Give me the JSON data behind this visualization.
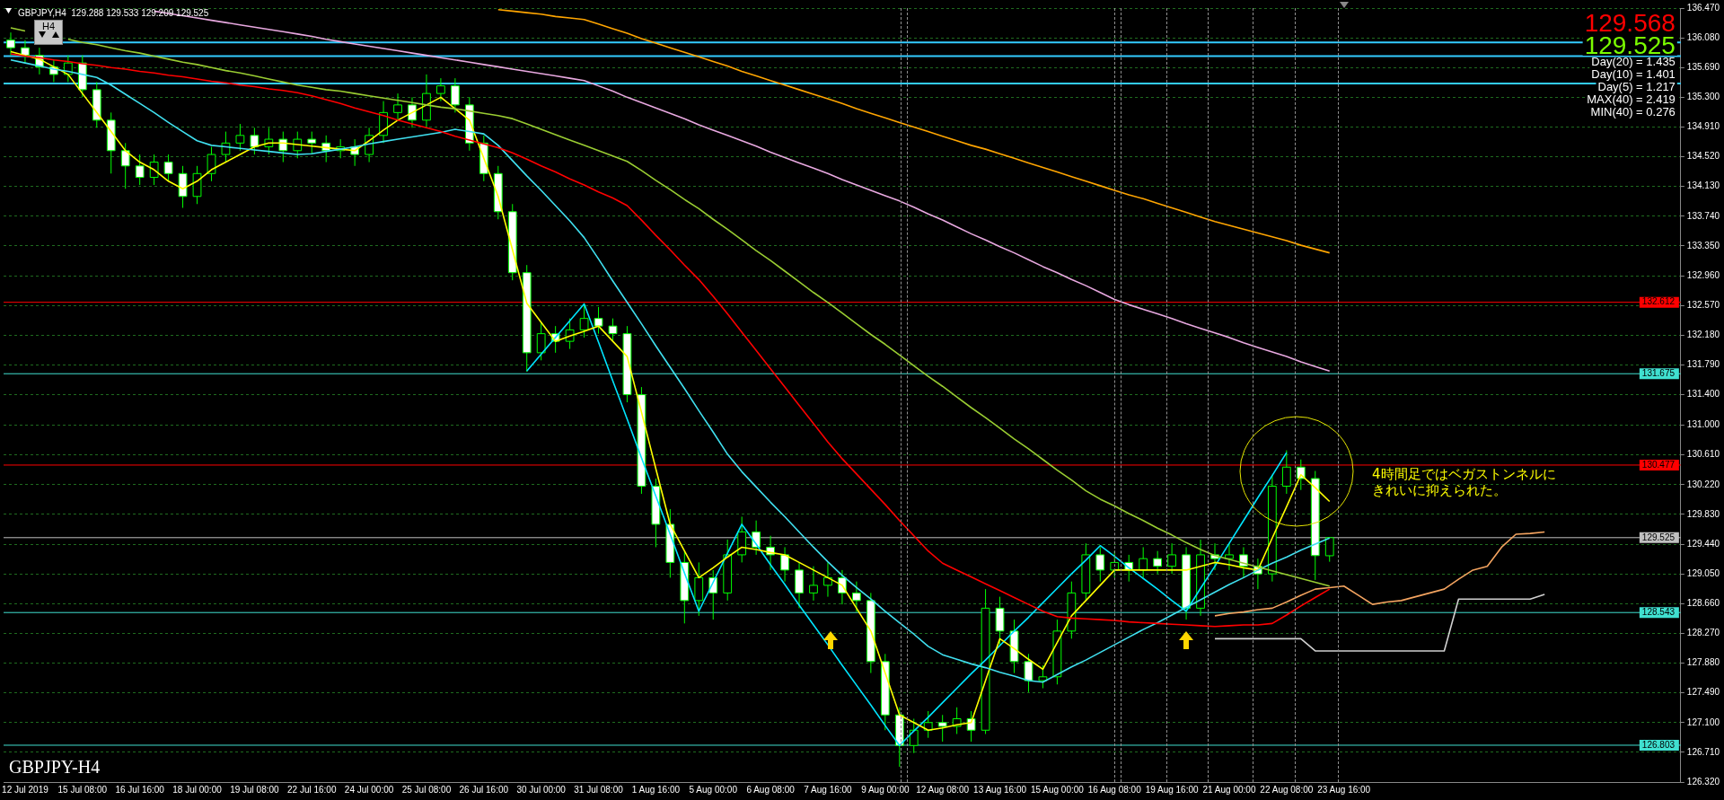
{
  "chart_data": {
    "type": "candlestick",
    "title": "GBPJPY-H4",
    "subtitle": "GBPJPY,H4  129.288 129.533 129.209 129.525",
    "annotations": [
      "H4",
      "129.568",
      "129.525",
      "Day(20) = 1.435",
      "Day(10) = 1.401",
      "Day(5) = 1.217",
      "MAX(40) = 2.419",
      "MIN(40) = 0.276",
      "4時間足ではベガストンネルにきれいに抑えられた。"
    ],
    "colors": [
      "#ffffff",
      "#ffffff",
      "#ffffff",
      "#ffffff",
      "#000000",
      "#ffffff",
      "#ffffff",
      "#ffffff",
      "#ffffff",
      "#ffffff",
      "#000000",
      "#ffffff",
      "#ffffff",
      "#000000",
      "#000000",
      "#000000",
      "#000000",
      "#ffffff",
      "#000000",
      "#ffffff",
      "#000000",
      "#ffffff",
      "#ffffff",
      "#000000",
      "#ffffff",
      "#000000",
      "#000000",
      "#000000",
      "#ffffff",
      "#000000",
      "#000000",
      "#ffffff",
      "#ffffff",
      "#ffffff",
      "#ffffff",
      "#ffffff",
      "#ffffff",
      "#000000",
      "#ffffff",
      "#000000",
      "#000000",
      "#ffffff",
      "#ffffff",
      "#ffffff",
      "#ffffff",
      "#ffffff",
      "#ffffff",
      "#ffffff",
      "#000000",
      "#ffffff",
      "#000000",
      "#000000",
      "#ffffff",
      "#ffffff",
      "#ffffff",
      "#ffffff",
      "#000000",
      "#000000",
      "#ffffff",
      "#ffffff",
      "#ffffff",
      "#ffffff",
      "#ffffff",
      "#000000",
      "#000000",
      "#ffffff",
      "#000000",
      "#ffffff",
      "#000000",
      "#ffffff",
      "#ffffff",
      "#ffffff",
      "#000000",
      "#000000",
      "#000000",
      "#000000",
      "#ffffff",
      "#000000",
      "#ffffff",
      "#000000",
      "#ffffff",
      "#000000",
      "#ffffff",
      "#000000",
      "#ffffff",
      "#000000",
      "#ffffff",
      "#ffffff",
      "#000000",
      "#000000",
      "#ffffff",
      "#ffffff",
      "#000000",
      null,
      null,
      null,
      null,
      null,
      null,
      null,
      null,
      null,
      null,
      null,
      null,
      null,
      null,
      null,
      null,
      null,
      null,
      null,
      null,
      null,
      null,
      null,
      null
    ],
    "categories": [
      null,
      "12 Jul 2019",
      null,
      null,
      null,
      "15 Jul 08:00",
      null,
      null,
      null,
      "16 Jul 16:00",
      null,
      null,
      null,
      "18 Jul 00:00",
      null,
      null,
      null,
      "19 Jul 08:00",
      null,
      null,
      null,
      "22 Jul 16:00",
      null,
      null,
      null,
      "24 Jul 00:00",
      null,
      null,
      null,
      "25 Jul 08:00",
      null,
      null,
      null,
      "26 Jul 16:00",
      null,
      null,
      null,
      "30 Jul 00:00",
      null,
      null,
      null,
      "31 Jul 08:00",
      null,
      null,
      null,
      "1 Aug 16:00",
      null,
      null,
      null,
      "5 Aug 00:00",
      null,
      null,
      null,
      "6 Aug 08:00",
      null,
      null,
      null,
      "7 Aug 16:00",
      null,
      null,
      null,
      "9 Aug 00:00",
      null,
      null,
      null,
      "12 Aug 08:00",
      null,
      null,
      null,
      "13 Aug 16:00",
      null,
      null,
      null,
      "15 Aug 00:00",
      null,
      null,
      null,
      "16 Aug 08:00",
      null,
      null,
      null,
      "19 Aug 16:00",
      null,
      null,
      null,
      "21 Aug 00:00",
      null,
      null,
      null,
      "22 Aug 08:00",
      null,
      null,
      null,
      "23 Aug 16:00",
      null,
      null,
      null,
      null,
      null,
      null,
      null,
      null,
      null,
      null,
      null,
      null,
      null,
      null,
      null,
      null,
      null,
      null,
      null,
      null,
      null,
      null,
      null
    ],
    "ohlc": [
      [
        136.05,
        136.15,
        135.85,
        135.95
      ],
      [
        135.95,
        136.05,
        135.75,
        135.85
      ],
      [
        135.85,
        135.95,
        135.6,
        135.7
      ],
      [
        135.7,
        135.8,
        135.5,
        135.6
      ],
      [
        135.6,
        135.85,
        135.5,
        135.75
      ],
      [
        135.75,
        135.85,
        135.3,
        135.4
      ],
      [
        135.4,
        135.5,
        134.9,
        135.0
      ],
      [
        135.0,
        135.1,
        134.3,
        134.6
      ],
      [
        134.6,
        134.7,
        134.1,
        134.4
      ],
      [
        134.4,
        134.55,
        134.15,
        134.25
      ],
      [
        134.25,
        134.55,
        134.15,
        134.45
      ],
      [
        134.45,
        134.55,
        134.2,
        134.3
      ],
      [
        134.3,
        134.4,
        133.85,
        134.0
      ],
      [
        134.0,
        134.4,
        133.9,
        134.3
      ],
      [
        134.3,
        134.65,
        134.2,
        134.55
      ],
      [
        134.55,
        134.85,
        134.45,
        134.7
      ],
      [
        134.7,
        134.95,
        134.6,
        134.8
      ],
      [
        134.8,
        134.9,
        134.55,
        134.65
      ],
      [
        134.65,
        134.9,
        134.55,
        134.75
      ],
      [
        134.75,
        134.85,
        134.45,
        134.6
      ],
      [
        134.6,
        134.85,
        134.5,
        134.75
      ],
      [
        134.75,
        134.85,
        134.55,
        134.7
      ],
      [
        134.7,
        134.8,
        134.45,
        134.6
      ],
      [
        134.6,
        134.75,
        134.5,
        134.65
      ],
      [
        134.65,
        134.75,
        134.4,
        134.55
      ],
      [
        134.55,
        134.9,
        134.45,
        134.8
      ],
      [
        134.8,
        135.25,
        134.7,
        135.1
      ],
      [
        135.1,
        135.35,
        135.0,
        135.2
      ],
      [
        135.2,
        135.3,
        134.9,
        135.0
      ],
      [
        135.0,
        135.6,
        134.9,
        135.35
      ],
      [
        135.35,
        135.55,
        135.25,
        135.45
      ],
      [
        135.45,
        135.55,
        135.1,
        135.2
      ],
      [
        135.2,
        135.3,
        134.6,
        134.7
      ],
      [
        134.7,
        134.8,
        134.2,
        134.3
      ],
      [
        134.3,
        134.4,
        133.7,
        133.8
      ],
      [
        133.8,
        133.9,
        132.9,
        133.0
      ],
      [
        133.0,
        133.1,
        131.7,
        131.95
      ],
      [
        131.95,
        132.35,
        131.85,
        132.2
      ],
      [
        132.2,
        132.3,
        131.95,
        132.1
      ],
      [
        132.1,
        132.4,
        132.0,
        132.25
      ],
      [
        132.25,
        132.6,
        132.15,
        132.4
      ],
      [
        132.4,
        132.55,
        132.2,
        132.3
      ],
      [
        132.3,
        132.4,
        132.1,
        132.2
      ],
      [
        132.2,
        132.3,
        131.3,
        131.4
      ],
      [
        131.4,
        131.5,
        130.1,
        130.2
      ],
      [
        130.2,
        130.3,
        129.4,
        129.7
      ],
      [
        129.7,
        129.9,
        129.0,
        129.2
      ],
      [
        129.2,
        129.35,
        128.4,
        128.7
      ],
      [
        128.7,
        129.2,
        128.5,
        129.0
      ],
      [
        129.0,
        129.1,
        128.45,
        128.8
      ],
      [
        128.8,
        129.5,
        128.7,
        129.3
      ],
      [
        129.3,
        129.8,
        129.2,
        129.6
      ],
      [
        129.6,
        129.75,
        129.3,
        129.4
      ],
      [
        129.4,
        129.55,
        129.1,
        129.3
      ],
      [
        129.3,
        129.4,
        128.95,
        129.1
      ],
      [
        129.1,
        129.2,
        128.6,
        128.8
      ],
      [
        128.8,
        129.15,
        128.7,
        128.9
      ],
      [
        128.9,
        129.2,
        128.75,
        129.0
      ],
      [
        129.0,
        129.1,
        128.65,
        128.8
      ],
      [
        128.8,
        128.95,
        128.55,
        128.7
      ],
      [
        128.7,
        128.8,
        127.75,
        127.9
      ],
      [
        127.9,
        128.0,
        127.0,
        127.2
      ],
      [
        127.2,
        127.3,
        126.52,
        126.8
      ],
      [
        126.8,
        127.15,
        126.7,
        127.0
      ],
      [
        127.0,
        127.25,
        126.9,
        127.1
      ],
      [
        127.1,
        127.2,
        126.85,
        127.05
      ],
      [
        127.05,
        127.3,
        126.95,
        127.15
      ],
      [
        127.15,
        127.25,
        126.85,
        127.0
      ],
      [
        127.0,
        128.85,
        126.95,
        128.6
      ],
      [
        128.6,
        128.75,
        128.1,
        128.3
      ],
      [
        128.3,
        128.45,
        127.75,
        127.9
      ],
      [
        127.9,
        128.0,
        127.5,
        127.65
      ],
      [
        127.65,
        127.85,
        127.55,
        127.7
      ],
      [
        127.7,
        128.45,
        127.6,
        128.3
      ],
      [
        128.3,
        128.95,
        128.2,
        128.8
      ],
      [
        128.8,
        129.45,
        128.7,
        129.3
      ],
      [
        129.3,
        129.4,
        128.95,
        129.1
      ],
      [
        129.1,
        129.35,
        129.0,
        129.2
      ],
      [
        129.2,
        129.3,
        128.95,
        129.1
      ],
      [
        129.1,
        129.4,
        129.0,
        129.25
      ],
      [
        129.25,
        129.35,
        129.05,
        129.15
      ],
      [
        129.15,
        129.45,
        129.05,
        129.3
      ],
      [
        129.3,
        129.4,
        128.45,
        128.6
      ],
      [
        128.6,
        129.5,
        128.5,
        129.3
      ],
      [
        129.3,
        129.45,
        129.1,
        129.25
      ],
      [
        129.25,
        129.45,
        129.1,
        129.3
      ],
      [
        129.3,
        129.4,
        129.0,
        129.15
      ],
      [
        129.15,
        129.25,
        128.85,
        129.05
      ],
      [
        129.05,
        130.35,
        128.95,
        130.2
      ],
      [
        130.2,
        130.67,
        130.1,
        130.45
      ],
      [
        130.45,
        130.55,
        130.15,
        130.3
      ],
      [
        130.3,
        130.4,
        128.97,
        129.29
      ],
      [
        129.288,
        129.533,
        129.209,
        129.525
      ],
      null,
      null,
      null,
      null,
      null,
      null,
      null,
      null,
      null,
      null,
      null,
      null,
      null,
      null,
      null,
      null,
      null,
      null,
      null,
      null,
      null,
      null,
      null,
      null
    ],
    "series": [
      {
        "type": "line",
        "color": "#ffa500",
        "values": [
          null,
          null,
          null,
          null,
          null,
          null,
          null,
          null,
          null,
          null,
          null,
          null,
          null,
          null,
          null,
          null,
          null,
          null,
          null,
          null,
          null,
          null,
          null,
          null,
          null,
          null,
          null,
          null,
          null,
          null,
          null,
          null,
          null,
          null,
          136.45,
          136.43,
          136.41,
          136.39,
          136.36,
          136.34,
          136.32,
          136.26,
          136.2,
          136.14,
          136.07,
          136.01,
          135.95,
          135.89,
          135.83,
          135.77,
          135.71,
          135.64,
          135.58,
          135.52,
          135.46,
          135.4,
          135.34,
          135.28,
          135.22,
          135.15,
          135.09,
          135.03,
          134.97,
          134.91,
          134.85,
          134.79,
          134.73,
          134.67,
          134.62,
          134.56,
          134.5,
          134.44,
          134.38,
          134.32,
          134.26,
          134.2,
          134.14,
          134.08,
          134.02,
          133.97,
          133.91,
          133.85,
          133.79,
          133.73,
          133.67,
          133.62,
          133.57,
          133.52,
          133.47,
          133.42,
          133.36,
          133.31,
          133.26,
          null,
          null,
          null,
          null,
          null,
          null,
          null,
          null,
          null,
          null,
          null,
          null,
          null,
          null,
          null,
          null,
          null,
          null,
          null,
          null,
          null,
          null,
          null,
          null
        ]
      },
      {
        "type": "line",
        "color": "#e8a8e0",
        "values": [
          null,
          null,
          null,
          null,
          null,
          null,
          null,
          null,
          null,
          null,
          136.43,
          136.4,
          136.37,
          136.34,
          136.31,
          136.28,
          136.25,
          136.22,
          136.19,
          136.16,
          136.13,
          136.1,
          136.06,
          136.03,
          136.0,
          135.97,
          135.94,
          135.91,
          135.88,
          135.85,
          135.82,
          135.79,
          135.76,
          135.73,
          135.7,
          135.67,
          135.64,
          135.61,
          135.58,
          135.55,
          135.52,
          135.45,
          135.38,
          135.3,
          135.23,
          135.16,
          135.09,
          135.02,
          134.94,
          134.87,
          134.8,
          134.73,
          134.66,
          134.58,
          134.51,
          134.44,
          134.37,
          134.3,
          134.22,
          134.15,
          134.08,
          134.01,
          133.94,
          133.86,
          133.77,
          133.69,
          133.6,
          133.51,
          133.43,
          133.34,
          133.26,
          133.17,
          133.08,
          133.0,
          132.91,
          132.83,
          132.74,
          132.65,
          132.58,
          132.52,
          132.46,
          132.4,
          132.33,
          132.27,
          132.21,
          132.15,
          132.08,
          132.02,
          131.96,
          131.9,
          131.83,
          131.77,
          131.71,
          null,
          null,
          null,
          null,
          null,
          null,
          null,
          null,
          null,
          null,
          null,
          null,
          null,
          null,
          null,
          null,
          null,
          null,
          null,
          null,
          null,
          null,
          null,
          null
        ]
      },
      {
        "type": "line",
        "color": "#9acd32",
        "values": [
          136.21,
          136.17,
          null,
          null,
          136.06,
          136.02,
          135.99,
          135.95,
          135.91,
          135.88,
          135.84,
          135.8,
          135.76,
          135.73,
          135.69,
          135.65,
          135.62,
          135.58,
          135.54,
          135.5,
          135.46,
          135.43,
          135.4,
          135.38,
          135.35,
          135.32,
          135.29,
          135.26,
          135.23,
          135.2,
          135.17,
          135.15,
          135.12,
          135.09,
          135.06,
          135.02,
          134.95,
          134.88,
          134.81,
          134.74,
          134.67,
          134.6,
          134.53,
          134.46,
          134.34,
          134.21,
          134.09,
          133.96,
          133.84,
          133.7,
          133.57,
          133.43,
          133.29,
          133.16,
          133.02,
          132.88,
          132.74,
          132.61,
          132.47,
          132.33,
          132.19,
          132.06,
          131.92,
          131.78,
          131.64,
          131.51,
          131.37,
          131.23,
          131.1,
          130.96,
          130.82,
          130.69,
          130.55,
          130.41,
          130.28,
          130.14,
          130.03,
          129.94,
          129.84,
          129.75,
          129.65,
          129.56,
          129.46,
          129.37,
          129.29,
          129.24,
          129.19,
          129.14,
          129.09,
          129.04,
          128.99,
          128.94,
          128.89,
          null,
          null,
          null,
          null,
          null,
          null,
          null,
          null,
          null,
          null,
          null,
          null,
          null,
          null,
          null,
          null,
          null,
          null,
          null,
          null,
          null,
          null,
          null,
          null
        ]
      },
      {
        "type": "line",
        "color": "#ff0000",
        "values": [
          135.87,
          135.84,
          135.82,
          135.79,
          135.77,
          135.74,
          135.72,
          135.69,
          135.67,
          135.64,
          135.62,
          135.59,
          135.57,
          135.54,
          135.51,
          135.49,
          135.46,
          135.44,
          135.41,
          135.39,
          135.36,
          135.32,
          135.27,
          135.22,
          135.16,
          135.11,
          135.06,
          135.0,
          134.95,
          134.9,
          134.85,
          134.79,
          134.74,
          134.69,
          134.64,
          134.57,
          134.49,
          134.4,
          134.32,
          134.23,
          134.15,
          134.06,
          133.98,
          133.88,
          133.69,
          133.49,
          133.3,
          133.1,
          132.91,
          132.69,
          132.46,
          132.22,
          131.98,
          131.74,
          131.5,
          131.26,
          131.02,
          130.78,
          130.56,
          130.36,
          130.16,
          129.96,
          129.75,
          129.55,
          129.35,
          129.19,
          129.1,
          129.01,
          128.92,
          128.83,
          128.74,
          128.65,
          128.56,
          128.49,
          128.47,
          128.46,
          128.45,
          128.44,
          128.42,
          128.41,
          128.4,
          128.39,
          128.38,
          128.37,
          128.36,
          128.37,
          128.38,
          128.38,
          128.4,
          128.51,
          128.63,
          128.74,
          128.85,
          null,
          null,
          null,
          null,
          null,
          null,
          null,
          null,
          null,
          null,
          null,
          null,
          null,
          null,
          null,
          null,
          null,
          null,
          null,
          null,
          null,
          null,
          null,
          null
        ]
      },
      {
        "type": "line",
        "color": "#40e0f0",
        "values": [
          135.79,
          135.75,
          135.71,
          135.67,
          135.64,
          135.6,
          135.56,
          135.46,
          135.34,
          135.22,
          135.1,
          134.97,
          134.85,
          134.73,
          134.67,
          134.65,
          134.63,
          134.61,
          134.59,
          134.57,
          134.55,
          134.56,
          134.59,
          134.62,
          134.65,
          134.69,
          134.72,
          134.75,
          134.78,
          134.81,
          134.84,
          134.88,
          134.85,
          134.82,
          134.67,
          134.47,
          134.27,
          134.08,
          133.88,
          133.68,
          133.46,
          133.18,
          132.89,
          132.61,
          132.33,
          132.04,
          131.76,
          131.48,
          131.19,
          130.91,
          130.62,
          130.39,
          130.19,
          129.99,
          129.8,
          129.6,
          129.4,
          129.21,
          129.03,
          128.87,
          128.72,
          128.56,
          128.41,
          128.26,
          128.1,
          127.99,
          127.93,
          127.87,
          127.82,
          127.76,
          127.71,
          127.65,
          127.63,
          127.73,
          127.83,
          127.92,
          128.02,
          128.12,
          128.22,
          128.32,
          128.41,
          128.51,
          128.61,
          128.71,
          128.81,
          128.91,
          129.0,
          129.1,
          129.19,
          129.27,
          129.36,
          129.44,
          129.52,
          null,
          null,
          null,
          null,
          null,
          null,
          null,
          null,
          null,
          null,
          null,
          null,
          null,
          null,
          null,
          null,
          null,
          null,
          null,
          null,
          null,
          null,
          null,
          null
        ]
      },
      {
        "type": "line",
        "color": "#ffff00",
        "values": [
          135.9,
          135.85,
          135.8,
          135.7,
          135.6,
          135.35,
          135.1,
          134.85,
          134.6,
          134.45,
          134.35,
          134.2,
          134.1,
          134.2,
          134.35,
          134.45,
          134.55,
          134.65,
          134.7,
          134.7,
          134.68,
          134.66,
          134.64,
          134.62,
          134.6,
          134.73,
          134.87,
          135.0,
          135.1,
          135.2,
          135.3,
          135.15,
          135.0,
          134.5,
          134.0,
          133.3,
          132.6,
          132.35,
          132.1,
          132.17,
          132.23,
          132.3,
          132.1,
          131.9,
          131.17,
          130.43,
          129.7,
          129.35,
          129.0,
          129.13,
          129.27,
          129.4,
          129.37,
          129.33,
          129.3,
          129.2,
          129.1,
          129.0,
          128.9,
          128.6,
          128.3,
          127.75,
          127.2,
          127.1,
          127.0,
          127.03,
          127.07,
          127.1,
          127.65,
          128.2,
          128.07,
          127.93,
          127.8,
          128.15,
          128.5,
          128.7,
          128.9,
          129.1,
          129.1,
          129.1,
          129.1,
          129.1,
          129.1,
          129.15,
          129.2,
          129.17,
          129.13,
          129.1,
          129.52,
          129.93,
          130.35,
          130.18,
          130.0,
          null,
          null,
          null,
          null,
          null,
          null,
          null,
          null,
          null,
          null,
          null,
          null,
          null,
          null,
          null,
          null,
          null,
          null,
          null,
          null,
          null,
          null,
          null,
          null
        ]
      },
      {
        "type": "line",
        "color": "#00e5ff",
        "values": [
          null,
          null,
          null,
          null,
          null,
          null,
          null,
          null,
          null,
          null,
          null,
          null,
          null,
          null,
          null,
          null,
          null,
          null,
          null,
          null,
          null,
          null,
          null,
          null,
          null,
          null,
          null,
          null,
          null,
          null,
          null,
          null,
          null,
          null,
          null,
          null,
          131.71,
          131.93,
          132.15,
          132.37,
          132.59,
          132.09,
          131.58,
          131.08,
          130.57,
          130.07,
          129.57,
          129.06,
          128.56,
          128.94,
          129.32,
          129.7,
          129.44,
          129.17,
          128.91,
          128.64,
          128.38,
          128.12,
          127.85,
          127.59,
          127.33,
          127.06,
          126.8,
          126.99,
          127.17,
          127.36,
          127.55,
          127.74,
          127.92,
          128.11,
          128.3,
          128.48,
          128.67,
          128.86,
          129.05,
          129.23,
          129.42,
          129.28,
          129.13,
          128.99,
          128.85,
          128.7,
          128.56,
          128.86,
          129.15,
          129.45,
          129.75,
          130.05,
          130.34,
          130.64,
          null,
          null,
          null,
          null,
          null,
          null,
          null,
          null,
          null,
          null,
          null,
          null,
          null,
          null,
          null,
          null,
          null,
          null,
          null,
          null,
          null,
          null,
          null,
          null,
          null,
          null,
          null
        ]
      },
      {
        "type": "line",
        "color": "#d0d0d0",
        "values": [
          null,
          null,
          null,
          null,
          null,
          null,
          null,
          null,
          null,
          null,
          null,
          null,
          null,
          null,
          null,
          null,
          null,
          null,
          null,
          null,
          null,
          null,
          null,
          null,
          null,
          null,
          null,
          null,
          null,
          null,
          null,
          null,
          null,
          null,
          null,
          null,
          null,
          null,
          null,
          null,
          null,
          null,
          null,
          null,
          null,
          null,
          null,
          null,
          null,
          null,
          null,
          null,
          null,
          null,
          null,
          null,
          null,
          null,
          null,
          null,
          null,
          null,
          null,
          null,
          null,
          null,
          null,
          null,
          null,
          null,
          null,
          null,
          null,
          null,
          null,
          null,
          null,
          null,
          null,
          null,
          null,
          null,
          null,
          null,
          128.2,
          128.2,
          128.2,
          128.2,
          128.2,
          128.2,
          128.2,
          128.04,
          128.04,
          128.04,
          128.04,
          128.04,
          128.04,
          128.04,
          128.04,
          128.04,
          128.04,
          128.72,
          128.72,
          128.72,
          128.72,
          128.72,
          128.72,
          128.78,
          null,
          null,
          null,
          null,
          null,
          null,
          null,
          null,
          null
        ]
      },
      {
        "type": "line",
        "color": "#f4a460",
        "values": [
          null,
          null,
          null,
          null,
          null,
          null,
          null,
          null,
          null,
          null,
          null,
          null,
          null,
          null,
          null,
          null,
          null,
          null,
          null,
          null,
          null,
          null,
          null,
          null,
          null,
          null,
          null,
          null,
          null,
          null,
          null,
          null,
          null,
          null,
          null,
          null,
          null,
          null,
          null,
          null,
          null,
          null,
          null,
          null,
          null,
          null,
          null,
          null,
          null,
          null,
          null,
          null,
          null,
          null,
          null,
          null,
          null,
          null,
          null,
          null,
          null,
          null,
          null,
          null,
          null,
          null,
          null,
          null,
          null,
          null,
          null,
          null,
          null,
          null,
          null,
          null,
          null,
          null,
          null,
          null,
          null,
          null,
          null,
          null,
          128.5,
          128.53,
          128.55,
          128.58,
          128.6,
          128.68,
          128.77,
          128.85,
          128.87,
          128.89,
          128.77,
          128.65,
          128.68,
          128.7,
          128.75,
          128.8,
          128.85,
          128.98,
          129.1,
          129.15,
          129.4,
          129.57,
          129.58,
          129.6,
          null,
          null,
          null,
          null,
          null,
          null,
          null,
          null,
          null
        ]
      }
    ],
    "ylim": [
      126.32,
      136.47
    ],
    "yticks": [
      {
        "value": 126.32,
        "label": "126.320"
      },
      {
        "value": 126.71,
        "label": "126.710"
      },
      {
        "value": 127.1,
        "label": "127.100"
      },
      {
        "value": 127.49,
        "label": "127.490"
      },
      {
        "value": 127.88,
        "label": "127.880"
      },
      {
        "value": 128.27,
        "label": "128.270"
      },
      {
        "value": 128.66,
        "label": "128.660"
      },
      {
        "value": 129.05,
        "label": "129.050"
      },
      {
        "value": 129.44,
        "label": "129.440"
      },
      {
        "value": 129.83,
        "label": "129.830"
      },
      {
        "value": 130.22,
        "label": "130.220"
      },
      {
        "value": 130.61,
        "label": "130.610"
      },
      {
        "value": 131.0,
        "label": "131.000"
      },
      {
        "value": 131.4,
        "label": "131.400"
      },
      {
        "value": 131.79,
        "label": "131.790"
      },
      {
        "value": 132.18,
        "label": "132.180"
      },
      {
        "value": 132.57,
        "label": "132.570"
      },
      {
        "value": 132.96,
        "label": "132.960"
      },
      {
        "value": 133.35,
        "label": "133.350"
      },
      {
        "value": 133.74,
        "label": "133.740"
      },
      {
        "value": 134.13,
        "label": "134.130"
      },
      {
        "value": 134.52,
        "label": "134.520"
      },
      {
        "value": 134.91,
        "label": "134.910"
      },
      {
        "value": 135.3,
        "label": "135.300"
      },
      {
        "value": 135.69,
        "label": "135.690"
      },
      {
        "value": 136.08,
        "label": "136.080"
      },
      {
        "value": 136.47,
        "label": "136.470"
      }
    ],
    "grid": "y",
    "legend": false,
    "marker": "none",
    "ref_lines": [
      {
        "axis": "y",
        "value": 136.02,
        "label": null,
        "color": "#33ccff"
      },
      {
        "axis": "y",
        "value": 135.84,
        "label": null,
        "color": "#33ccff"
      },
      {
        "axis": "y",
        "value": 135.48,
        "label": null,
        "color": "#33ccff"
      },
      {
        "axis": "y",
        "value": 132.612,
        "label": "132.612",
        "color": "#ff0000"
      },
      {
        "axis": "y",
        "value": 131.675,
        "label": "131.675",
        "color": "#40e0d0"
      },
      {
        "axis": "y",
        "value": 130.477,
        "label": "130.477",
        "color": "#ff0000"
      },
      {
        "axis": "y",
        "value": 129.525,
        "label": "129.525",
        "color": "#c0c0c0"
      },
      {
        "axis": "y",
        "value": 128.543,
        "label": "128.543",
        "color": "#40e0d0"
      },
      {
        "axis": "y",
        "value": 126.803,
        "label": "126.803",
        "color": "#40e0d0"
      }
    ]
  }
}
